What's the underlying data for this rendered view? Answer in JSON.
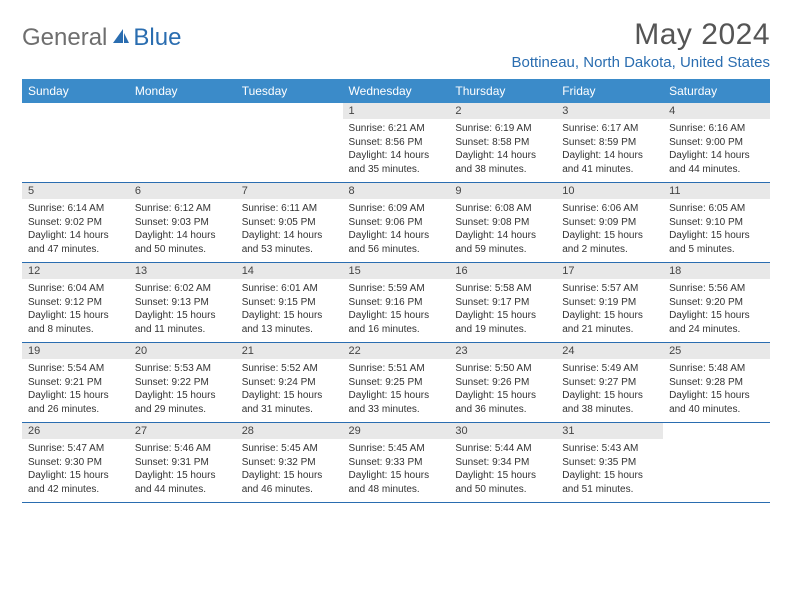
{
  "brand": {
    "part1": "General",
    "part2": "Blue"
  },
  "title": "May 2024",
  "location": "Bottineau, North Dakota, United States",
  "colors": {
    "header_bg": "#3b8bc9",
    "border": "#2a6db0",
    "daynum_bg": "#e8e8e8",
    "brand_blue": "#2a6db0",
    "brand_gray": "#6e6e6e"
  },
  "day_headers": [
    "Sunday",
    "Monday",
    "Tuesday",
    "Wednesday",
    "Thursday",
    "Friday",
    "Saturday"
  ],
  "weeks": [
    [
      null,
      null,
      null,
      {
        "n": "1",
        "sr": "6:21 AM",
        "ss": "8:56 PM",
        "dh": 14,
        "dm": 35
      },
      {
        "n": "2",
        "sr": "6:19 AM",
        "ss": "8:58 PM",
        "dh": 14,
        "dm": 38
      },
      {
        "n": "3",
        "sr": "6:17 AM",
        "ss": "8:59 PM",
        "dh": 14,
        "dm": 41
      },
      {
        "n": "4",
        "sr": "6:16 AM",
        "ss": "9:00 PM",
        "dh": 14,
        "dm": 44
      }
    ],
    [
      {
        "n": "5",
        "sr": "6:14 AM",
        "ss": "9:02 PM",
        "dh": 14,
        "dm": 47
      },
      {
        "n": "6",
        "sr": "6:12 AM",
        "ss": "9:03 PM",
        "dh": 14,
        "dm": 50
      },
      {
        "n": "7",
        "sr": "6:11 AM",
        "ss": "9:05 PM",
        "dh": 14,
        "dm": 53
      },
      {
        "n": "8",
        "sr": "6:09 AM",
        "ss": "9:06 PM",
        "dh": 14,
        "dm": 56
      },
      {
        "n": "9",
        "sr": "6:08 AM",
        "ss": "9:08 PM",
        "dh": 14,
        "dm": 59
      },
      {
        "n": "10",
        "sr": "6:06 AM",
        "ss": "9:09 PM",
        "dh": 15,
        "dm": 2
      },
      {
        "n": "11",
        "sr": "6:05 AM",
        "ss": "9:10 PM",
        "dh": 15,
        "dm": 5
      }
    ],
    [
      {
        "n": "12",
        "sr": "6:04 AM",
        "ss": "9:12 PM",
        "dh": 15,
        "dm": 8
      },
      {
        "n": "13",
        "sr": "6:02 AM",
        "ss": "9:13 PM",
        "dh": 15,
        "dm": 11
      },
      {
        "n": "14",
        "sr": "6:01 AM",
        "ss": "9:15 PM",
        "dh": 15,
        "dm": 13
      },
      {
        "n": "15",
        "sr": "5:59 AM",
        "ss": "9:16 PM",
        "dh": 15,
        "dm": 16
      },
      {
        "n": "16",
        "sr": "5:58 AM",
        "ss": "9:17 PM",
        "dh": 15,
        "dm": 19
      },
      {
        "n": "17",
        "sr": "5:57 AM",
        "ss": "9:19 PM",
        "dh": 15,
        "dm": 21
      },
      {
        "n": "18",
        "sr": "5:56 AM",
        "ss": "9:20 PM",
        "dh": 15,
        "dm": 24
      }
    ],
    [
      {
        "n": "19",
        "sr": "5:54 AM",
        "ss": "9:21 PM",
        "dh": 15,
        "dm": 26
      },
      {
        "n": "20",
        "sr": "5:53 AM",
        "ss": "9:22 PM",
        "dh": 15,
        "dm": 29
      },
      {
        "n": "21",
        "sr": "5:52 AM",
        "ss": "9:24 PM",
        "dh": 15,
        "dm": 31
      },
      {
        "n": "22",
        "sr": "5:51 AM",
        "ss": "9:25 PM",
        "dh": 15,
        "dm": 33
      },
      {
        "n": "23",
        "sr": "5:50 AM",
        "ss": "9:26 PM",
        "dh": 15,
        "dm": 36
      },
      {
        "n": "24",
        "sr": "5:49 AM",
        "ss": "9:27 PM",
        "dh": 15,
        "dm": 38
      },
      {
        "n": "25",
        "sr": "5:48 AM",
        "ss": "9:28 PM",
        "dh": 15,
        "dm": 40
      }
    ],
    [
      {
        "n": "26",
        "sr": "5:47 AM",
        "ss": "9:30 PM",
        "dh": 15,
        "dm": 42
      },
      {
        "n": "27",
        "sr": "5:46 AM",
        "ss": "9:31 PM",
        "dh": 15,
        "dm": 44
      },
      {
        "n": "28",
        "sr": "5:45 AM",
        "ss": "9:32 PM",
        "dh": 15,
        "dm": 46
      },
      {
        "n": "29",
        "sr": "5:45 AM",
        "ss": "9:33 PM",
        "dh": 15,
        "dm": 48
      },
      {
        "n": "30",
        "sr": "5:44 AM",
        "ss": "9:34 PM",
        "dh": 15,
        "dm": 50
      },
      {
        "n": "31",
        "sr": "5:43 AM",
        "ss": "9:35 PM",
        "dh": 15,
        "dm": 51
      },
      null
    ]
  ]
}
